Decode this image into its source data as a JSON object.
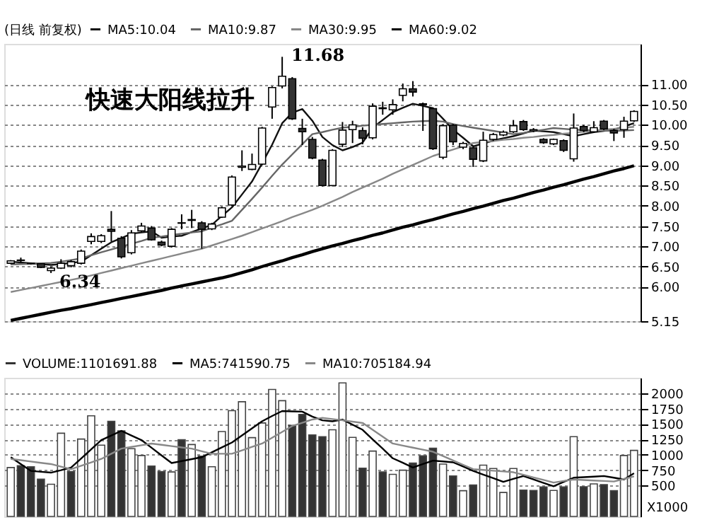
{
  "chart_data": [
    {
      "type": "candlestick",
      "legend_title": "(日线 前复权)",
      "legend": "top left",
      "tick_labels": "y",
      "grid": "y",
      "categories": [
        null,
        null,
        null,
        null,
        null,
        null,
        null,
        null,
        null,
        null,
        null,
        null,
        null,
        null,
        null,
        null,
        null,
        null,
        null,
        null,
        null,
        null,
        null,
        null,
        null,
        null,
        null,
        null,
        null,
        null,
        null,
        null,
        null,
        null,
        null,
        null,
        null,
        null,
        null,
        null,
        null,
        null,
        null,
        null,
        null,
        null,
        null,
        null,
        null,
        null,
        null,
        null,
        null,
        null,
        null,
        null,
        null,
        null,
        null,
        null,
        null,
        null,
        null
      ],
      "ohlc": [
        [
          6.58,
          6.66,
          6.56,
          6.64
        ],
        [
          6.65,
          6.72,
          6.6,
          6.66
        ],
        [
          6.57,
          6.6,
          6.55,
          6.58
        ],
        [
          6.57,
          6.58,
          6.46,
          6.48
        ],
        [
          6.4,
          6.5,
          6.34,
          6.46
        ],
        [
          6.46,
          6.68,
          6.44,
          6.58
        ],
        [
          6.52,
          6.66,
          6.48,
          6.62
        ],
        [
          6.58,
          6.92,
          6.55,
          6.88
        ],
        [
          7.12,
          7.32,
          7.05,
          7.24
        ],
        [
          7.12,
          7.3,
          7.08,
          7.26
        ],
        [
          7.42,
          7.87,
          7.12,
          7.37
        ],
        [
          7.2,
          7.25,
          6.7,
          6.74
        ],
        [
          6.84,
          7.4,
          6.8,
          7.33
        ],
        [
          7.38,
          7.58,
          7.35,
          7.5
        ],
        [
          7.45,
          7.5,
          7.14,
          7.16
        ],
        [
          7.1,
          7.14,
          7.0,
          7.03
        ],
        [
          7.0,
          7.45,
          6.97,
          7.42
        ],
        [
          7.57,
          7.79,
          7.42,
          7.58
        ],
        [
          7.64,
          7.9,
          7.45,
          7.66
        ],
        [
          7.58,
          7.62,
          6.94,
          7.42
        ],
        [
          7.43,
          7.58,
          7.4,
          7.55
        ],
        [
          7.72,
          7.98,
          7.7,
          7.95
        ],
        [
          8.02,
          8.75,
          8.0,
          8.71
        ],
        [
          8.95,
          9.37,
          8.86,
          8.98
        ],
        [
          8.9,
          9.29,
          8.88,
          9.02
        ],
        [
          9.03,
          9.95,
          9.0,
          9.92
        ],
        [
          10.44,
          10.95,
          10.15,
          10.92
        ],
        [
          10.96,
          11.68,
          10.9,
          11.2
        ],
        [
          11.14,
          11.18,
          10.12,
          10.15
        ],
        [
          9.91,
          10.15,
          9.5,
          9.83
        ],
        [
          9.64,
          9.7,
          9.15,
          9.18
        ],
        [
          9.13,
          9.16,
          8.48,
          8.5
        ],
        [
          8.5,
          9.4,
          8.48,
          9.37
        ],
        [
          9.52,
          10.07,
          9.45,
          9.87
        ],
        [
          9.88,
          10.1,
          9.55,
          10.0
        ],
        [
          9.86,
          9.94,
          9.52,
          9.67
        ],
        [
          9.68,
          10.53,
          9.64,
          10.46
        ],
        [
          10.4,
          10.57,
          10.25,
          10.42
        ],
        [
          10.37,
          10.63,
          10.25,
          10.5
        ],
        [
          10.73,
          11.02,
          10.58,
          10.89
        ],
        [
          10.89,
          11.08,
          10.7,
          10.81
        ],
        [
          10.52,
          10.55,
          9.85,
          10.5
        ],
        [
          10.4,
          10.43,
          9.38,
          9.41
        ],
        [
          9.2,
          10.02,
          9.15,
          9.98
        ],
        [
          9.99,
          10.02,
          9.5,
          9.58
        ],
        [
          9.45,
          9.58,
          9.4,
          9.54
        ],
        [
          9.43,
          9.47,
          8.96,
          9.15
        ],
        [
          9.11,
          9.83,
          9.08,
          9.62
        ],
        [
          9.64,
          9.8,
          9.6,
          9.76
        ],
        [
          9.75,
          9.86,
          9.72,
          9.82
        ],
        [
          9.83,
          10.12,
          9.8,
          9.98
        ],
        [
          10.08,
          10.12,
          9.85,
          9.88
        ],
        [
          9.85,
          9.92,
          9.82,
          9.88
        ],
        [
          9.64,
          9.67,
          9.53,
          9.56
        ],
        [
          9.53,
          9.66,
          9.5,
          9.64
        ],
        [
          9.61,
          9.64,
          9.33,
          9.37
        ],
        [
          9.16,
          10.28,
          9.09,
          9.92
        ],
        [
          9.96,
          10.0,
          9.82,
          9.86
        ],
        [
          9.83,
          10.09,
          9.8,
          9.93
        ],
        [
          10.09,
          10.12,
          9.87,
          9.9
        ],
        [
          9.86,
          9.9,
          9.6,
          9.8
        ],
        [
          9.88,
          10.2,
          9.68,
          10.09
        ],
        [
          10.1,
          10.36,
          10.07,
          10.33
        ]
      ],
      "colors": [
        "#ffffff",
        "#ffffff",
        "#ffffff",
        "#333333",
        "#ffffff",
        "#ffffff",
        "#ffffff",
        "#ffffff",
        "#ffffff",
        "#ffffff",
        "#333333",
        "#333333",
        "#ffffff",
        "#ffffff",
        "#333333",
        "#333333",
        "#ffffff",
        "#ffffff",
        "#ffffff",
        "#333333",
        "#ffffff",
        "#ffffff",
        "#ffffff",
        "#ffffff",
        "#ffffff",
        "#ffffff",
        "#ffffff",
        "#ffffff",
        "#333333",
        "#333333",
        "#333333",
        "#333333",
        "#ffffff",
        "#ffffff",
        "#ffffff",
        "#333333",
        "#ffffff",
        "#ffffff",
        "#ffffff",
        "#ffffff",
        "#333333",
        "#333333",
        "#333333",
        "#ffffff",
        "#333333",
        "#ffffff",
        "#333333",
        "#ffffff",
        "#ffffff",
        "#ffffff",
        "#ffffff",
        "#333333",
        "#ffffff",
        "#333333",
        "#ffffff",
        "#333333",
        "#ffffff",
        "#333333",
        "#ffffff",
        "#333333",
        "#333333",
        "#ffffff",
        "#ffffff"
      ],
      "series": [
        {
          "name": "MA5:10.04",
          "type": "line",
          "color": "#111111",
          "values": [
            6.62,
            6.6,
            6.58,
            6.56,
            6.54,
            6.56,
            6.59,
            6.62,
            6.78,
            6.94,
            7.1,
            7.2,
            7.31,
            7.34,
            7.37,
            7.21,
            7.24,
            7.26,
            7.35,
            7.44,
            7.53,
            7.75,
            7.96,
            8.28,
            8.6,
            9.05,
            9.51,
            10.04,
            10.3,
            10.39,
            10.1,
            9.7,
            9.5,
            9.37,
            9.45,
            9.56,
            9.93,
            10.12,
            10.31,
            10.42,
            10.52,
            10.47,
            10.41,
            10.15,
            9.88,
            9.68,
            9.47,
            9.54,
            9.61,
            9.67,
            9.72,
            9.79,
            9.86,
            9.84,
            9.82,
            9.77,
            9.72,
            9.77,
            9.82,
            9.85,
            9.88,
            9.96,
            10.04
          ]
        },
        {
          "name": "MA10:9.87",
          "type": "line",
          "color": "#666666",
          "values": [
            6.55,
            6.56,
            6.57,
            6.58,
            6.59,
            6.62,
            6.66,
            6.7,
            6.78,
            6.85,
            6.92,
            6.99,
            7.06,
            7.13,
            7.21,
            7.24,
            7.28,
            7.31,
            7.34,
            7.37,
            7.46,
            7.54,
            7.63,
            7.9,
            8.17,
            8.45,
            8.74,
            9.02,
            9.27,
            9.52,
            9.77,
            9.82,
            9.88,
            9.93,
            9.95,
            9.98,
            10.0,
            10.02,
            10.04,
            10.06,
            10.08,
            10.09,
            10.1,
            10.08,
            10.02,
            9.97,
            9.93,
            9.89,
            9.85,
            9.81,
            9.77,
            9.8,
            9.84,
            9.88,
            9.92,
            9.9,
            9.88,
            9.87,
            9.86,
            9.86,
            9.85,
            9.86,
            9.87
          ]
        },
        {
          "name": "MA30:9.95",
          "type": "line",
          "color": "#888888",
          "values": [
            5.87,
            5.92,
            5.97,
            6.02,
            6.07,
            6.12,
            6.17,
            6.22,
            6.28,
            6.34,
            6.4,
            6.46,
            6.52,
            6.58,
            6.64,
            6.7,
            6.76,
            6.82,
            6.88,
            6.94,
            7.02,
            7.1,
            7.18,
            7.26,
            7.35,
            7.44,
            7.53,
            7.62,
            7.72,
            7.81,
            7.9,
            8.0,
            8.11,
            8.22,
            8.34,
            8.45,
            8.56,
            8.67,
            8.79,
            8.9,
            9.01,
            9.12,
            9.23,
            9.31,
            9.39,
            9.47,
            9.55,
            9.58,
            9.6,
            9.63,
            9.65,
            9.68,
            9.7,
            9.73,
            9.75,
            9.78,
            9.8,
            9.83,
            9.85,
            9.88,
            9.9,
            9.93,
            9.95
          ]
        },
        {
          "name": "MA60:9.02",
          "type": "line",
          "color": "#000000",
          "values": [
            5.17,
            5.22,
            5.27,
            5.32,
            5.37,
            5.42,
            5.46,
            5.51,
            5.56,
            5.61,
            5.66,
            5.71,
            5.76,
            5.81,
            5.86,
            5.91,
            5.97,
            6.02,
            6.07,
            6.12,
            6.17,
            6.22,
            6.28,
            6.35,
            6.42,
            6.5,
            6.57,
            6.64,
            6.72,
            6.79,
            6.87,
            6.94,
            7.01,
            7.07,
            7.14,
            7.2,
            7.27,
            7.33,
            7.4,
            7.47,
            7.53,
            7.6,
            7.66,
            7.73,
            7.8,
            7.86,
            7.93,
            7.99,
            8.06,
            8.13,
            8.19,
            8.26,
            8.33,
            8.39,
            8.46,
            8.52,
            8.59,
            8.66,
            8.72,
            8.79,
            8.86,
            8.92,
            8.99
          ]
        }
      ],
      "ylim": [
        5.15,
        12.0
      ],
      "yticks": [
        {
          "value": 5.15,
          "label": "5.15"
        },
        {
          "value": 6,
          "label": "6.00"
        },
        {
          "value": 6.5,
          "label": "6.50"
        },
        {
          "value": 7,
          "label": "7.00"
        },
        {
          "value": 7.5,
          "label": "7.50"
        },
        {
          "value": 8,
          "label": "8.00"
        },
        {
          "value": 8.5,
          "label": "8.50"
        },
        {
          "value": 9,
          "label": "9.00"
        },
        {
          "value": 9.5,
          "label": "9.50"
        },
        {
          "value": 10,
          "label": "10.00"
        },
        {
          "value": 10.5,
          "label": "10.50"
        },
        {
          "value": 11,
          "label": "11.00"
        }
      ],
      "annotations": [
        "快速大阳线拉升",
        "11.68",
        {
          "text": "6.34",
          "y": 6.34
        }
      ]
    },
    {
      "type": "bar",
      "legend": "top left",
      "tick_labels": "y",
      "grid": "y",
      "ylabel": "X1000",
      "categories": [
        null,
        null,
        null,
        null,
        null,
        null,
        null,
        null,
        null,
        null,
        null,
        null,
        null,
        null,
        null,
        null,
        null,
        null,
        null,
        null,
        null,
        null,
        null,
        null,
        null,
        null,
        null,
        null,
        null,
        null,
        null,
        null,
        null,
        null,
        null,
        null,
        null,
        null,
        null,
        null,
        null,
        null,
        null,
        null,
        null,
        null,
        null,
        null,
        null,
        null,
        null,
        null,
        null,
        null,
        null,
        null,
        null,
        null,
        null,
        null,
        null,
        null,
        null
      ],
      "series": [
        {
          "name": "VOLUME:1101691.88",
          "color": "#333333",
          "values": [
            793,
            822,
            805,
            605,
            522,
            1350,
            728,
            1256,
            1633,
            1156,
            1544,
            1389,
            1100,
            989,
            817,
            728,
            722,
            1244,
            1167,
            978,
            806,
            1378,
            1717,
            1861,
            1278,
            1517,
            2061,
            1878,
            1478,
            1656,
            1322,
            1294,
            1406,
            2167,
            1283,
            783,
            1061,
            722,
            683,
            750,
            867,
            983,
            1106,
            850,
            656,
            417,
            511,
            833,
            778,
            389,
            778,
            428,
            422,
            478,
            422,
            478,
            1294,
            483,
            528,
            517,
            417,
            989,
            1072
          ],
          "colors": [
            "#ffffff",
            "#333333",
            "#333333",
            "#333333",
            "#ffffff",
            "#ffffff",
            "#333333",
            "#ffffff",
            "#ffffff",
            "#ffffff",
            "#333333",
            "#333333",
            "#ffffff",
            "#ffffff",
            "#333333",
            "#333333",
            "#ffffff",
            "#333333",
            "#ffffff",
            "#333333",
            "#ffffff",
            "#ffffff",
            "#ffffff",
            "#ffffff",
            "#ffffff",
            "#ffffff",
            "#ffffff",
            "#ffffff",
            "#333333",
            "#333333",
            "#333333",
            "#333333",
            "#ffffff",
            "#ffffff",
            "#ffffff",
            "#333333",
            "#ffffff",
            "#333333",
            "#ffffff",
            "#ffffff",
            "#333333",
            "#333333",
            "#333333",
            "#ffffff",
            "#333333",
            "#ffffff",
            "#333333",
            "#ffffff",
            "#ffffff",
            "#ffffff",
            "#ffffff",
            "#333333",
            "#333333",
            "#333333",
            "#ffffff",
            "#333333",
            "#ffffff",
            "#333333",
            "#ffffff",
            "#333333",
            "#333333",
            "#ffffff",
            "#ffffff"
          ]
        },
        {
          "name": "MA5:741590.75",
          "type": "line",
          "color": "#000000",
          "values": [
            961,
            850,
            739,
            725,
            711,
            750,
            794,
            940,
            1090,
            1239,
            1314,
            1389,
            1314,
            1239,
            1115,
            991,
            867,
            898,
            930,
            961,
            1040,
            1120,
            1200,
            1315,
            1430,
            1544,
            1630,
            1711,
            1705,
            1700,
            1620,
            1560,
            1544,
            1572,
            1490,
            1406,
            1250,
            1100,
            944,
            870,
            794,
            850,
            906,
            892,
            878,
            810,
            739,
            680,
            620,
            561,
            610,
            656,
            600,
            545,
            489,
            560,
            628,
            637,
            646,
            656,
            628,
            600,
            700
          ]
        },
        {
          "name": "MA10:705184.94",
          "type": "line",
          "color": "#888888",
          "values": [
            933,
            912,
            891,
            870,
            850,
            808,
            767,
            822,
            878,
            933,
            1017,
            1100,
            1128,
            1155,
            1183,
            1162,
            1141,
            1120,
            1100,
            1058,
            1017,
            1017,
            1017,
            1072,
            1128,
            1183,
            1278,
            1372,
            1467,
            1520,
            1573,
            1600,
            1580,
            1560,
            1538,
            1517,
            1406,
            1294,
            1183,
            1150,
            1116,
            1083,
            1050,
            980,
            909,
            838,
            767,
            755,
            742,
            730,
            717,
            675,
            633,
            592,
            550,
            575,
            600,
            592,
            583,
            575,
            567,
            608,
            650
          ]
        }
      ],
      "ylim": [
        0,
        2250
      ],
      "yticks": [
        {
          "value": 500,
          "label": "500"
        },
        {
          "value": 750,
          "label": "750"
        },
        {
          "value": 1000,
          "label": "1000"
        },
        {
          "value": 1250,
          "label": "1250"
        },
        {
          "value": 1500,
          "label": "1500"
        },
        {
          "value": 1750,
          "label": "1750"
        },
        {
          "value": 2000,
          "label": "2000"
        }
      ]
    }
  ]
}
